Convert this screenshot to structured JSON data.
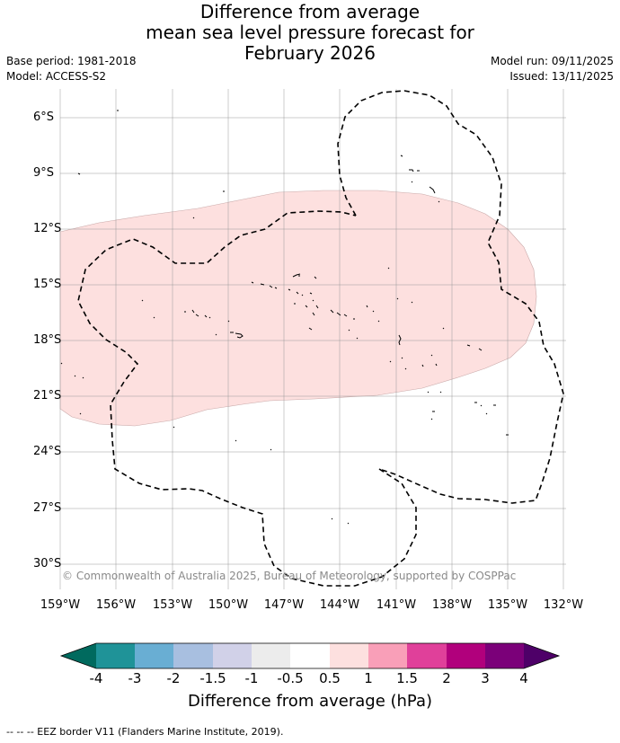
{
  "title": {
    "line1": "Difference from average",
    "line2": "mean sea level pressure forecast for",
    "line3": "February 2026"
  },
  "meta": {
    "base_period": "Base period: 1981-2018",
    "model": "Model: ACCESS-S2",
    "model_run": "Model run: 09/11/2025",
    "issued": "Issued: 13/11/2025"
  },
  "map": {
    "lat_labels": [
      "6°S",
      "9°S",
      "12°S",
      "15°S",
      "18°S",
      "21°S",
      "24°S",
      "27°S",
      "30°S"
    ],
    "lon_labels": [
      "159°W",
      "156°W",
      "153°W",
      "150°W",
      "147°W",
      "144°W",
      "141°W",
      "138°W",
      "135°W",
      "132°W"
    ],
    "anomaly_region": {
      "category": "0.5 to 1",
      "color": "#fde0df"
    },
    "copyright": "© Commonwealth of Australia 2025, Bureau of Meteorology, supported by COSPPac"
  },
  "colorbar": {
    "title": "Difference from average (hPa)",
    "ticks": [
      "-4",
      "-3",
      "-2",
      "-1.5",
      "-1",
      "-0.5",
      "0.5",
      "1",
      "1.5",
      "2",
      "3",
      "4"
    ],
    "colors": [
      "#006a5e",
      "#1f9398",
      "#69aed3",
      "#a8bfe0",
      "#d1d1e8",
      "#ececec",
      "#ffffff",
      "#fde0df",
      "#f99fb8",
      "#e0409a",
      "#b1007c",
      "#7b0079",
      "#4e0068"
    ]
  },
  "footnote": "--  --  -- EEZ border V11 (Flanders Marine Institute, 2019)."
}
